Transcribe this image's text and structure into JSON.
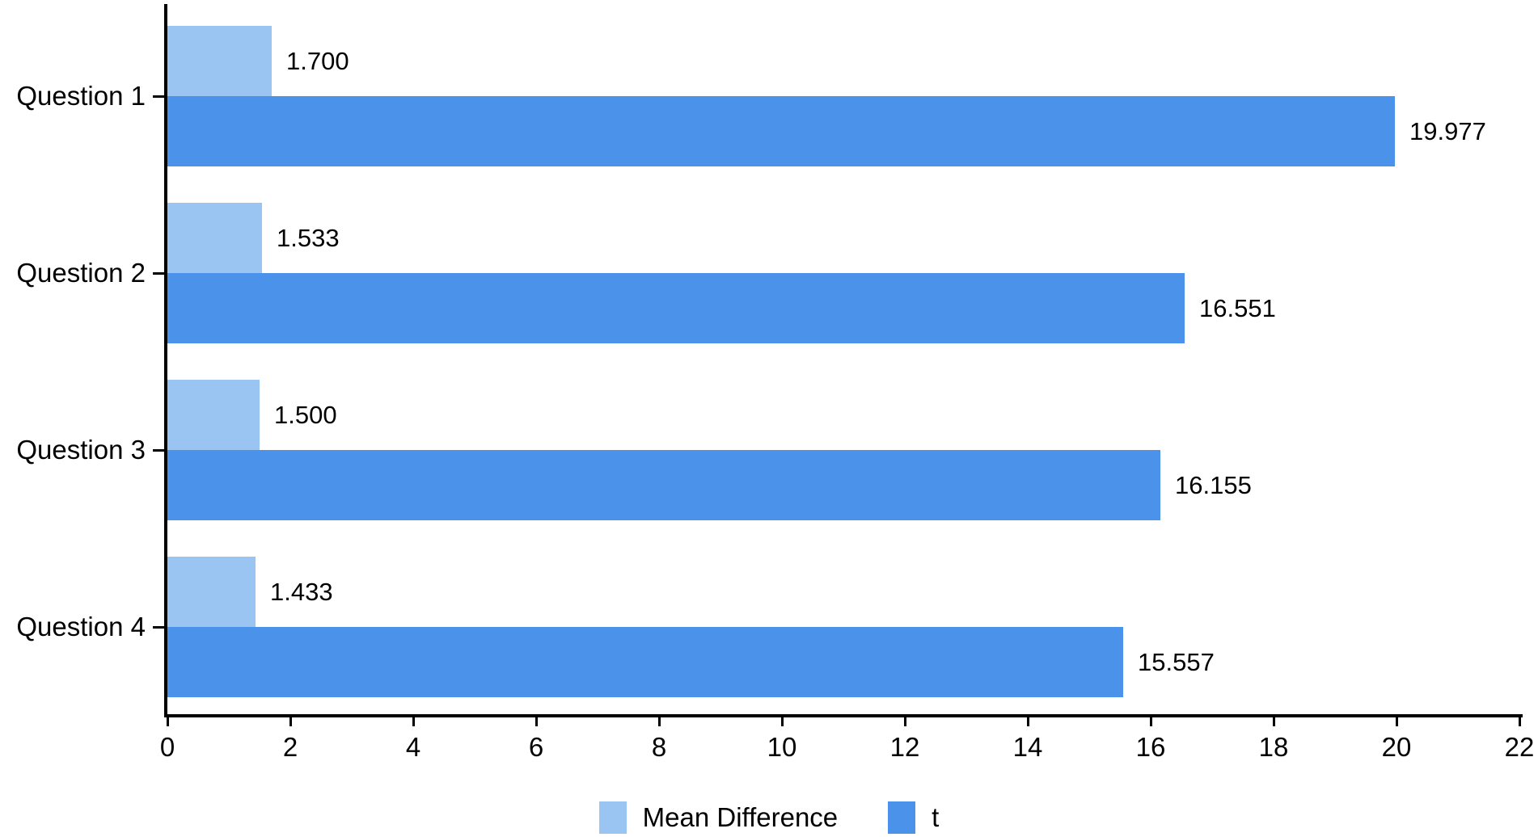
{
  "chart_data": {
    "type": "bar",
    "orientation": "horizontal",
    "title": "",
    "xlabel": "",
    "ylabel": "",
    "categories": [
      "Question 1",
      "Question 2",
      "Question 3",
      "Question 4"
    ],
    "series": [
      {
        "name": "Mean Difference",
        "color": "#9AC4F2",
        "values": [
          1.7,
          1.533,
          1.5,
          1.433
        ],
        "value_labels": [
          "1.700",
          "1.533",
          "1.500",
          "1.433"
        ]
      },
      {
        "name": "t",
        "color": "#4B92EA",
        "values": [
          19.977,
          16.551,
          16.155,
          15.557
        ],
        "value_labels": [
          "19.977",
          "16.551",
          "16.155",
          "15.557"
        ]
      }
    ],
    "xlim": [
      0,
      22
    ],
    "x_ticks": [
      "0",
      "2",
      "4",
      "6",
      "8",
      "10",
      "12",
      "14",
      "16",
      "18",
      "20",
      "22"
    ],
    "grid": false,
    "legend_position": "bottom",
    "axis_color": "#000000",
    "text_color": "#000000"
  }
}
